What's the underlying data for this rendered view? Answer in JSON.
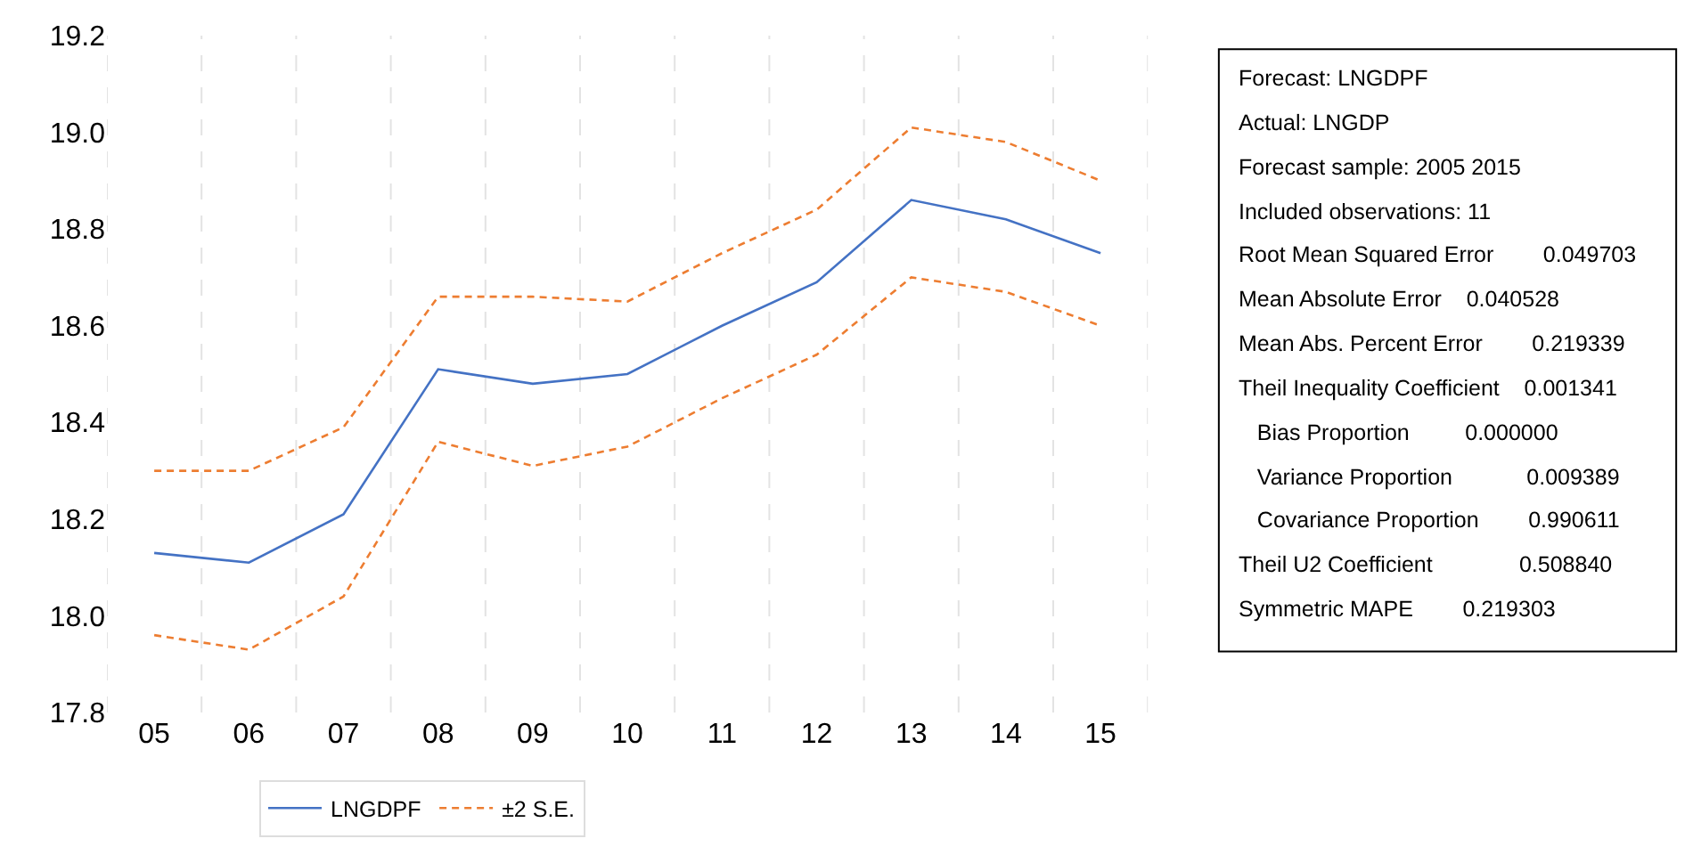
{
  "chart_data": {
    "type": "line",
    "categories": [
      "05",
      "06",
      "07",
      "08",
      "09",
      "10",
      "11",
      "12",
      "13",
      "14",
      "15"
    ],
    "series": [
      {
        "name": "LNGDPF",
        "color": "#4472c4",
        "line_style": "solid",
        "values": [
          18.13,
          18.11,
          18.21,
          18.51,
          18.48,
          18.5,
          18.6,
          18.69,
          18.86,
          18.82,
          18.75
        ]
      },
      {
        "name": "±2 S.E.",
        "color": "#ed7d31",
        "line_style": "dashed",
        "values": [
          18.3,
          18.3,
          18.39,
          18.66,
          18.66,
          18.65,
          18.75,
          18.84,
          19.01,
          18.98,
          18.9
        ]
      },
      {
        "color": "#ed7d31",
        "line_style": "dashed",
        "values": [
          17.96,
          17.93,
          18.04,
          18.36,
          18.31,
          18.35,
          18.45,
          18.54,
          18.7,
          18.67,
          18.6
        ]
      }
    ],
    "ylim": [
      17.8,
      19.2
    ],
    "yticks": [
      17.8,
      {
        "value": 18,
        "label": "18.0"
      },
      18.2,
      18.4,
      18.6,
      18.8,
      {
        "value": 19,
        "label": "19.0"
      },
      19.2
    ],
    "grid": "x",
    "legend": "bottom",
    "marker": "none",
    "annotations": [
      "Forecast: LNGDPF",
      "Actual: LNGDP",
      "Forecast sample: 2005 2015",
      "Included observations: 11",
      "Root Mean Squared Error        0.049703",
      "Mean Absolute Error    0.040528",
      "Mean Abs. Percent Error        0.219339",
      "Theil Inequality Coefficient    0.001341",
      "   Bias Proportion         0.000000",
      "   Variance Proportion            0.009389",
      "   Covariance Proportion        0.990611",
      "Theil U2 Coefficient              0.508840",
      "Symmetric MAPE        0.219303"
    ]
  }
}
